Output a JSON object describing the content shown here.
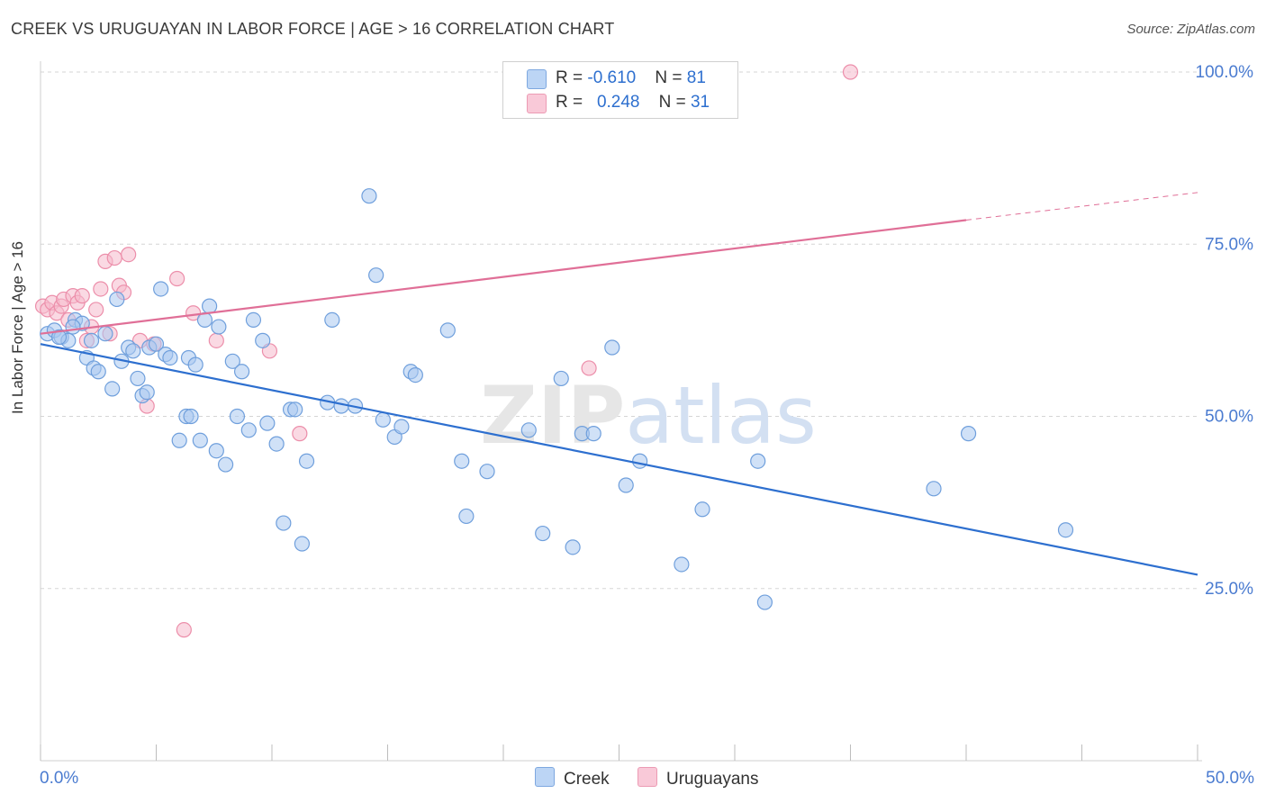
{
  "header": {
    "title": "CREEK VS URUGUAYAN IN LABOR FORCE | AGE > 16 CORRELATION CHART",
    "source": "Source: ZipAtlas.com"
  },
  "colors": {
    "creek_fill": "#a9c8f0",
    "creek_stroke": "#6f9fdc",
    "creek_line": "#2d6fcf",
    "uru_fill": "#f6b9cc",
    "uru_stroke": "#ec8eaa",
    "uru_line": "#e06f97",
    "grid": "#d5d5d5",
    "tick_label": "#4a7bd0"
  },
  "legend": {
    "rows": [
      {
        "r_label": "R = ",
        "r_value": "-0.610",
        "n_label": "N = ",
        "n_value": "81"
      },
      {
        "r_label": "R = ",
        "r_value": "0.248",
        "n_label": "N = ",
        "n_value": "31"
      }
    ]
  },
  "bottom_legend": [
    "Creek",
    "Uruguayans"
  ],
  "chart_data": {
    "type": "scatter",
    "title": "CREEK VS URUGUAYAN IN LABOR FORCE | AGE > 16 CORRELATION CHART",
    "xlabel": "",
    "ylabel": "In Labor Force | Age > 16",
    "xlim": [
      0,
      50
    ],
    "ylim": [
      0,
      102
    ],
    "x_tick_labels": [
      "0.0%",
      "50.0%"
    ],
    "y_ticks": [
      25,
      50,
      75,
      100
    ],
    "y_tick_labels": [
      "25.0%",
      "50.0%",
      "75.0%",
      "100.0%"
    ],
    "grid": "horizontal dashed",
    "watermark": "ZIPatlas",
    "series": [
      {
        "name": "Creek",
        "r": -0.61,
        "n": 81,
        "trend": {
          "x": [
            0,
            50
          ],
          "y": [
            60.5,
            27
          ]
        },
        "points": [
          [
            0.3,
            62
          ],
          [
            0.6,
            62.5
          ],
          [
            0.9,
            61.5
          ],
          [
            1.2,
            61
          ],
          [
            1.5,
            64
          ],
          [
            1.8,
            63.5
          ],
          [
            2.0,
            58.5
          ],
          [
            2.3,
            57
          ],
          [
            2.5,
            56.5
          ],
          [
            2.8,
            62
          ],
          [
            3.1,
            54
          ],
          [
            3.3,
            67
          ],
          [
            3.5,
            58
          ],
          [
            3.8,
            60
          ],
          [
            4.0,
            59.5
          ],
          [
            4.2,
            55.5
          ],
          [
            4.4,
            53
          ],
          [
            4.7,
            60
          ],
          [
            5.0,
            60.5
          ],
          [
            5.2,
            68.5
          ],
          [
            5.4,
            59
          ],
          [
            5.6,
            58.5
          ],
          [
            6.0,
            46.5
          ],
          [
            6.3,
            50
          ],
          [
            6.5,
            50
          ],
          [
            6.4,
            58.5
          ],
          [
            6.7,
            57.5
          ],
          [
            6.9,
            46.5
          ],
          [
            7.1,
            64
          ],
          [
            7.3,
            66
          ],
          [
            7.6,
            45
          ],
          [
            7.7,
            63
          ],
          [
            8.0,
            43
          ],
          [
            8.3,
            58
          ],
          [
            8.5,
            50
          ],
          [
            8.7,
            56.5
          ],
          [
            9.0,
            48
          ],
          [
            9.2,
            64
          ],
          [
            9.6,
            61
          ],
          [
            9.8,
            49
          ],
          [
            10.2,
            46
          ],
          [
            10.5,
            34.5
          ],
          [
            10.8,
            51
          ],
          [
            11.0,
            51
          ],
          [
            11.3,
            31.5
          ],
          [
            11.5,
            43.5
          ],
          [
            12.4,
            52
          ],
          [
            12.6,
            64
          ],
          [
            13.0,
            51.5
          ],
          [
            13.6,
            51.5
          ],
          [
            14.2,
            82
          ],
          [
            14.5,
            70.5
          ],
          [
            14.8,
            49.5
          ],
          [
            15.3,
            47
          ],
          [
            15.6,
            48.5
          ],
          [
            16.0,
            56.5
          ],
          [
            16.2,
            56
          ],
          [
            17.6,
            62.5
          ],
          [
            18.2,
            43.5
          ],
          [
            18.4,
            35.5
          ],
          [
            19.3,
            42
          ],
          [
            21.1,
            48
          ],
          [
            21.7,
            33
          ],
          [
            22.5,
            55.5
          ],
          [
            23.0,
            31
          ],
          [
            23.4,
            47.5
          ],
          [
            23.9,
            47.5
          ],
          [
            24.7,
            60
          ],
          [
            25.3,
            40
          ],
          [
            25.9,
            43.5
          ],
          [
            27.7,
            28.5
          ],
          [
            28.6,
            36.5
          ],
          [
            31.0,
            43.5
          ],
          [
            31.3,
            23
          ],
          [
            38.6,
            39.5
          ],
          [
            40.1,
            47.5
          ],
          [
            44.3,
            33.5
          ],
          [
            4.6,
            53.5
          ],
          [
            2.2,
            61
          ],
          [
            0.8,
            61.5
          ],
          [
            1.4,
            63
          ]
        ]
      },
      {
        "name": "Uruguayans",
        "r": 0.248,
        "n": 31,
        "trend": {
          "x": [
            0,
            40
          ],
          "y": [
            62,
            78.5
          ]
        },
        "trend_dashed": {
          "x": [
            40,
            50
          ],
          "y": [
            78.5,
            82.5
          ]
        },
        "points": [
          [
            0.1,
            66
          ],
          [
            0.3,
            65.5
          ],
          [
            0.5,
            66.5
          ],
          [
            0.7,
            65
          ],
          [
            0.9,
            66
          ],
          [
            1.0,
            67
          ],
          [
            1.2,
            64
          ],
          [
            1.4,
            67.5
          ],
          [
            1.6,
            66.5
          ],
          [
            1.8,
            67.5
          ],
          [
            2.0,
            61
          ],
          [
            2.2,
            63
          ],
          [
            2.4,
            65.5
          ],
          [
            2.6,
            68.5
          ],
          [
            2.8,
            72.5
          ],
          [
            3.0,
            62
          ],
          [
            3.2,
            73
          ],
          [
            3.4,
            69
          ],
          [
            3.6,
            68
          ],
          [
            3.8,
            73.5
          ],
          [
            4.3,
            61
          ],
          [
            4.6,
            51.5
          ],
          [
            4.9,
            60.5
          ],
          [
            5.9,
            70
          ],
          [
            6.2,
            19
          ],
          [
            6.6,
            65
          ],
          [
            7.6,
            61
          ],
          [
            9.9,
            59.5
          ],
          [
            11.2,
            47.5
          ],
          [
            23.7,
            57
          ],
          [
            35.0,
            100
          ]
        ]
      }
    ]
  }
}
